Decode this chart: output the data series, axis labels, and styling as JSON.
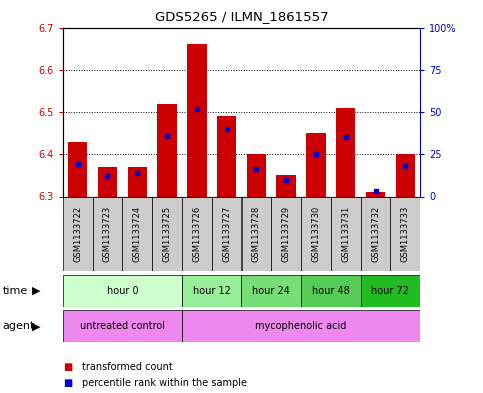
{
  "title": "GDS5265 / ILMN_1861557",
  "samples": [
    "GSM1133722",
    "GSM1133723",
    "GSM1133724",
    "GSM1133725",
    "GSM1133726",
    "GSM1133727",
    "GSM1133728",
    "GSM1133729",
    "GSM1133730",
    "GSM1133731",
    "GSM1133732",
    "GSM1133733"
  ],
  "transformed_counts": [
    6.43,
    6.37,
    6.37,
    6.52,
    6.66,
    6.49,
    6.4,
    6.35,
    6.45,
    6.51,
    6.31,
    6.4
  ],
  "percentile_ranks": [
    19,
    12,
    14,
    36,
    52,
    40,
    16,
    10,
    25,
    35,
    3,
    18
  ],
  "ylim_left": [
    6.3,
    6.7
  ],
  "ylim_right": [
    0,
    100
  ],
  "yticks_left": [
    6.3,
    6.4,
    6.5,
    6.6,
    6.7
  ],
  "yticks_right": [
    0,
    25,
    50,
    75,
    100
  ],
  "ytick_labels_right": [
    "0",
    "25",
    "50",
    "75",
    "100%"
  ],
  "left_axis_color": "#cc0000",
  "right_axis_color": "#0000cc",
  "bar_color": "#cc0000",
  "percentile_color": "#0000cc",
  "grid_color": "#000000",
  "background_color": "#ffffff",
  "sample_bg_color": "#cccccc",
  "time_groups": [
    {
      "label": "hour 0",
      "start": 0,
      "end": 4,
      "color": "#ccffcc"
    },
    {
      "label": "hour 12",
      "start": 4,
      "end": 6,
      "color": "#99ee99"
    },
    {
      "label": "hour 24",
      "start": 6,
      "end": 8,
      "color": "#77dd77"
    },
    {
      "label": "hour 48",
      "start": 8,
      "end": 10,
      "color": "#55cc55"
    },
    {
      "label": "hour 72",
      "start": 10,
      "end": 12,
      "color": "#22bb22"
    }
  ],
  "agent_groups": [
    {
      "label": "untreated control",
      "start": 0,
      "end": 4,
      "color": "#ee88ee"
    },
    {
      "label": "mycophenolic acid",
      "start": 4,
      "end": 12,
      "color": "#ee88ee"
    }
  ],
  "legend_items": [
    {
      "color": "#cc0000",
      "label": "transformed count"
    },
    {
      "color": "#0000cc",
      "label": "percentile rank within the sample"
    }
  ],
  "bar_bottom": 6.3,
  "bar_width": 0.65,
  "time_row_label": "time",
  "agent_row_label": "agent"
}
